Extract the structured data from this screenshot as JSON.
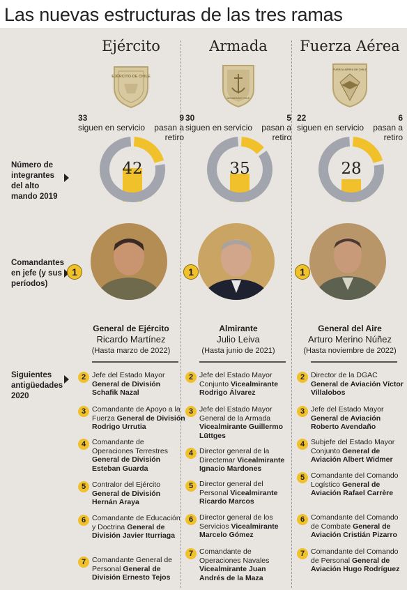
{
  "title": "Las nuevas estructuras de las tres ramas",
  "side_labels": {
    "mando": "Número de integrantes del alto mando 2019",
    "comandantes": "Comandantes en jefe (y sus períodos)",
    "antiguedades": "Siguientes antigüedades 2020"
  },
  "colors": {
    "accent": "#f0c12a",
    "gray": "#a3a5ae",
    "panel": "#e8e5e0"
  },
  "chart_data": [
    {
      "type": "pie",
      "title": "Ejército",
      "total": 42,
      "slices": [
        {
          "label": "siguen en servicio",
          "value": 33
        },
        {
          "label": "pasan a retiro",
          "value": 9
        }
      ]
    },
    {
      "type": "pie",
      "title": "Armada",
      "total": 35,
      "slices": [
        {
          "label": "siguen en servicio",
          "value": 30
        },
        {
          "label": "pasan a retiro",
          "value": 5
        }
      ]
    },
    {
      "type": "pie",
      "title": "Fuerza Aérea",
      "total": 28,
      "slices": [
        {
          "label": "siguen en servicio",
          "value": 22
        },
        {
          "label": "pasan a retiro",
          "value": 6
        }
      ]
    }
  ],
  "branches": [
    {
      "name": "Ejército",
      "emblem_icon": "army-shield-icon",
      "emblem_text": "EJÉRCITO DE CHILE",
      "stay": "33",
      "stay_label": "siguen en servicio",
      "retire": "9",
      "retire_label": "pasan a retiro",
      "total": "42",
      "stay_value": 33,
      "retire_value": 9,
      "cmd_rank": "General de Ejército",
      "cmd_name": "Ricardo Martínez",
      "cmd_period": "(Hasta marzo de 2022)",
      "rank_badge": "1",
      "items": [
        {
          "n": "2",
          "pre": "Jefe del Estado Mayor ",
          "bold": "General de División Schafik Nazal"
        },
        {
          "n": "3",
          "pre": "Comandante de Apoyo a la Fuerza ",
          "bold": "General de División Rodrigo Urrutia"
        },
        {
          "n": "4",
          "pre": "Comandante de Operaciones Terrestres ",
          "bold": "General de División Esteban Guarda"
        },
        {
          "n": "5",
          "pre": "Contralor del Ejército ",
          "bold": "General de División Hernán Araya"
        },
        {
          "n": "6",
          "pre": "Comandante de Educación y Doctrina ",
          "bold": "General de División Javier Iturriaga"
        },
        {
          "n": "7",
          "pre": "Comandante General de Personal ",
          "bold": "General de División Ernesto Tejos"
        }
      ]
    },
    {
      "name": "Armada",
      "emblem_icon": "navy-anchor-shield-icon",
      "emblem_text": "ARMADA DE CHILE",
      "stay": "30",
      "stay_label": "siguen en servicio",
      "retire": "5",
      "retire_label": "pasan a retiro",
      "total": "35",
      "stay_value": 30,
      "retire_value": 5,
      "cmd_rank": "Almirante",
      "cmd_name": "Julio Leiva",
      "cmd_period": "(Hasta junio de 2021)",
      "rank_badge": "1",
      "items": [
        {
          "n": "2",
          "pre": "Jefe del Estado Mayor Conjunto ",
          "bold": "Vicealmirante Rodrigo Álvarez"
        },
        {
          "n": "3",
          "pre": "Jefe del Estado Mayor General de la Armada ",
          "bold": "Vicealmirante Guillermo Lüttges"
        },
        {
          "n": "4",
          "pre": "Director general de la Directemar ",
          "bold": "Vicealmirante Ignacio Mardones"
        },
        {
          "n": "5",
          "pre": "Director general del Personal ",
          "bold": "Vicealmirante Ricardo Marcos"
        },
        {
          "n": "6",
          "pre": "Director general de los Servicios ",
          "bold": "Vicealmirante Marcelo Gómez"
        },
        {
          "n": "7",
          "pre": "Comandante de Operaciones Navales ",
          "bold": "Vicealmirante Juan Andrés de la Maza"
        }
      ]
    },
    {
      "name": "Fuerza Aérea",
      "emblem_icon": "air-force-shield-icon",
      "emblem_text": "FUERZA AÉREA DE CHILE",
      "stay": "22",
      "stay_label": "siguen en servicio",
      "retire": "6",
      "retire_label": "pasan a retiro",
      "total": "28",
      "stay_value": 22,
      "retire_value": 6,
      "cmd_rank": "General del Aire",
      "cmd_name": "Arturo Merino Núñez",
      "cmd_period": "(Hasta noviembre de 2022)",
      "rank_badge": "1",
      "items": [
        {
          "n": "2",
          "pre": "Director de la DGAC ",
          "bold": "General de Aviación Víctor Villalobos"
        },
        {
          "n": "3",
          "pre": "Jefe del Estado Mayor ",
          "bold": "General de Aviación Roberto Avendaño"
        },
        {
          "n": "4",
          "pre": "Subjefe del Estado Mayor Conjunto ",
          "bold": "General de Aviación Albert Widmer"
        },
        {
          "n": "5",
          "pre": "Comandante del Comando Logístico ",
          "bold": "General de Aviación Rafael Carrère"
        },
        {
          "n": "6",
          "pre": "Comandante del Comando de Combate ",
          "bold": "General de Aviación Cristián Pizarro"
        },
        {
          "n": "7",
          "pre": "Comandante del Comando de Personal ",
          "bold": "General de Aviación Hugo Rodríguez"
        }
      ]
    }
  ]
}
